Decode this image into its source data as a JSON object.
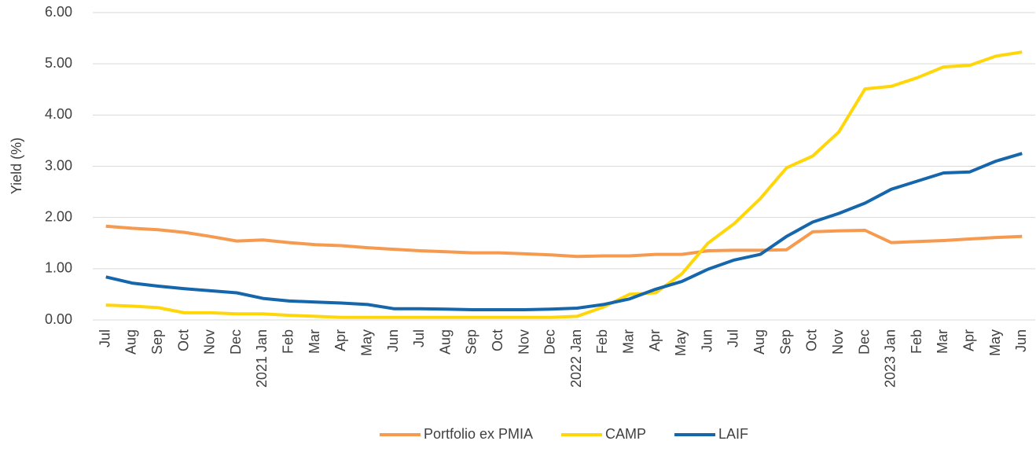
{
  "chart_data": {
    "type": "line",
    "ylabel": "Yield (%)",
    "categories": [
      "Jul",
      "Aug",
      "Sep",
      "Oct",
      "Nov",
      "Dec",
      "2021 Jan",
      "Feb",
      "Mar",
      "Apr",
      "May",
      "Jun",
      "Jul",
      "Aug",
      "Sep",
      "Oct",
      "Nov",
      "Dec",
      "2022 Jan",
      "Feb",
      "Mar",
      "Apr",
      "May",
      "Jun",
      "Jul",
      "Aug",
      "Sep",
      "Oct",
      "Nov",
      "Dec",
      "2023 Jan",
      "Feb",
      "Mar",
      "Apr",
      "May",
      "Jun"
    ],
    "series": [
      {
        "name": "Portfolio ex PMIA",
        "color": "#f59a4f",
        "values": [
          1.83,
          1.79,
          1.76,
          1.71,
          1.63,
          1.54,
          1.56,
          1.51,
          1.47,
          1.45,
          1.41,
          1.38,
          1.35,
          1.33,
          1.31,
          1.31,
          1.29,
          1.27,
          1.24,
          1.25,
          1.25,
          1.28,
          1.28,
          1.35,
          1.36,
          1.36,
          1.37,
          1.72,
          1.74,
          1.75,
          1.51,
          1.53,
          1.55,
          1.58,
          1.61,
          1.63
        ]
      },
      {
        "name": "CAMP",
        "color": "#ffd60a",
        "values": [
          0.29,
          0.27,
          0.24,
          0.14,
          0.14,
          0.12,
          0.12,
          0.09,
          0.07,
          0.05,
          0.05,
          0.05,
          0.05,
          0.05,
          0.05,
          0.05,
          0.05,
          0.05,
          0.07,
          0.25,
          0.5,
          0.53,
          0.9,
          1.5,
          1.88,
          2.37,
          2.97,
          3.2,
          3.67,
          4.51,
          4.56,
          4.73,
          4.94,
          4.97,
          5.15,
          5.23
        ]
      },
      {
        "name": "LAIF",
        "color": "#1566ab",
        "values": [
          0.84,
          0.72,
          0.66,
          0.61,
          0.57,
          0.53,
          0.42,
          0.37,
          0.35,
          0.33,
          0.3,
          0.22,
          0.22,
          0.21,
          0.2,
          0.2,
          0.2,
          0.21,
          0.23,
          0.3,
          0.41,
          0.6,
          0.75,
          0.99,
          1.17,
          1.28,
          1.63,
          1.91,
          2.08,
          2.28,
          2.55,
          2.71,
          2.87,
          2.89,
          3.1,
          3.25
        ]
      }
    ],
    "ylim": [
      0,
      6
    ],
    "yticks": [
      {
        "value": 0,
        "label": "0.00"
      },
      {
        "value": 1,
        "label": "1.00"
      },
      {
        "value": 2,
        "label": "2.00"
      },
      {
        "value": 3,
        "label": "3.00"
      },
      {
        "value": 4,
        "label": "4.00"
      },
      {
        "value": 5,
        "label": "5.00"
      },
      {
        "value": 6,
        "label": "6.00"
      }
    ],
    "grid": true,
    "legend": "bottom"
  }
}
